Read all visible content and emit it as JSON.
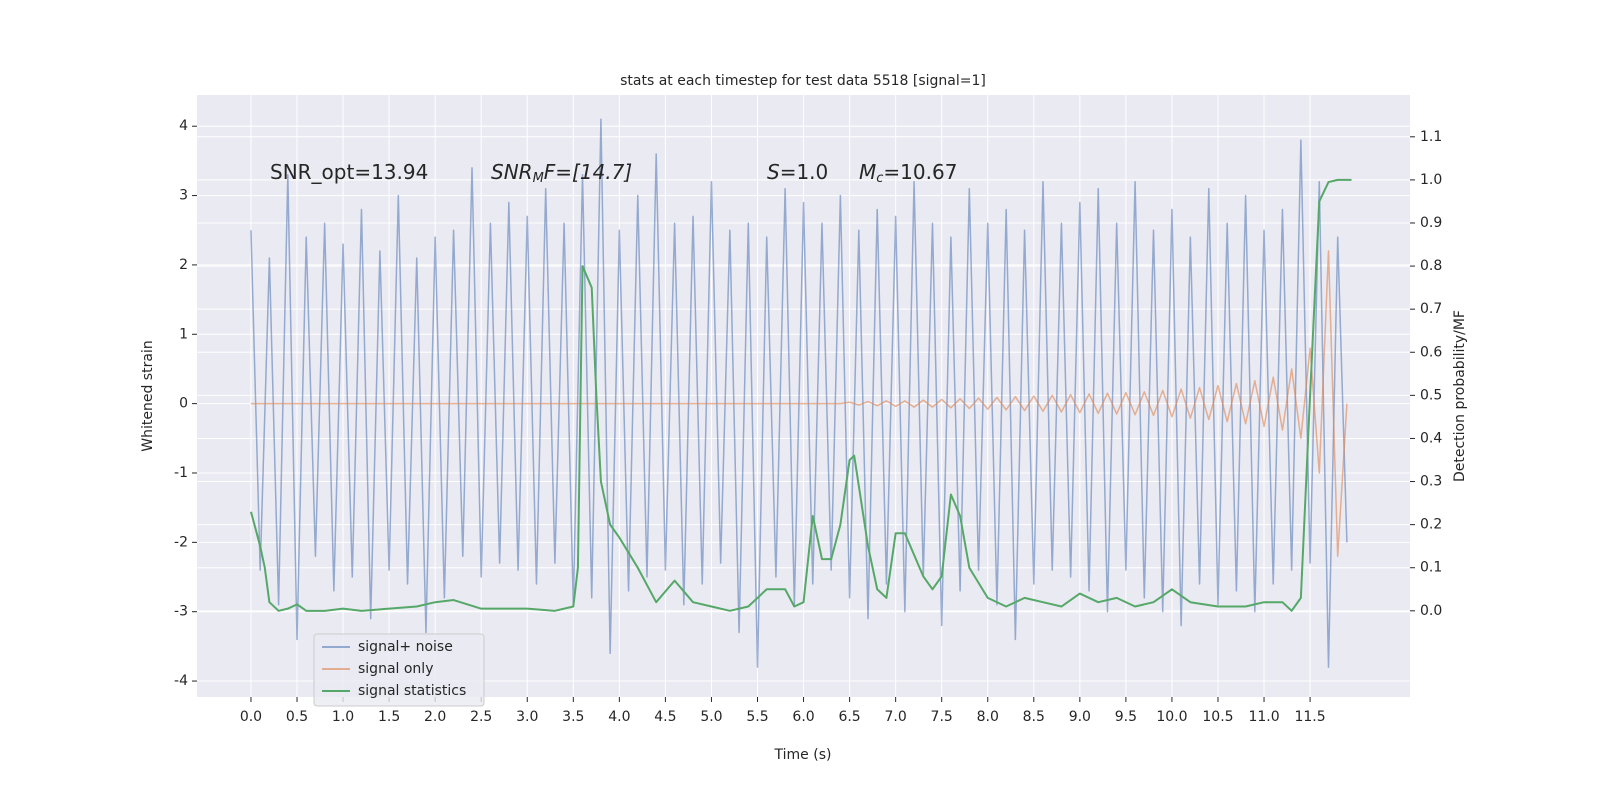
{
  "chart_data": {
    "type": "line",
    "title": "stats at each timestep for test data 5518 [signal=1]",
    "xlabel": "Time (s)",
    "ylabel": "Whitened strain",
    "y2label": "Detection probability/MF",
    "annotations": [
      [
        "SNR_opt=13.94"
      ],
      [
        "SNR",
        "M",
        "F=[14.7]"
      ],
      [
        "S",
        "=1.0"
      ],
      [
        "M",
        "c",
        "=10.67"
      ]
    ],
    "xlim": [
      -0.586,
      12.585
    ],
    "ylim": [
      -4.23,
      4.45
    ],
    "y2lim": [
      -0.2,
      1.197
    ],
    "xticks": [
      {
        "value": 0,
        "label": "0.0"
      },
      0.5,
      {
        "value": 1,
        "label": "1.0"
      },
      1.5,
      {
        "value": 2,
        "label": "2.0"
      },
      2.5,
      {
        "value": 3,
        "label": "3.0"
      },
      3.5,
      {
        "value": 4,
        "label": "4.0"
      },
      4.5,
      {
        "value": 5,
        "label": "5.0"
      },
      5.5,
      {
        "value": 6,
        "label": "6.0"
      },
      6.5,
      {
        "value": 7,
        "label": "7.0"
      },
      7.5,
      {
        "value": 8,
        "label": "8.0"
      },
      8.5,
      {
        "value": 9,
        "label": "9.0"
      },
      9.5,
      {
        "value": 10,
        "label": "10.0"
      },
      10.5,
      {
        "value": 11,
        "label": "11.0"
      },
      11.5
    ],
    "yticks": [
      -4,
      -3,
      -2,
      -1,
      0,
      1,
      2,
      3,
      4
    ],
    "y2ticks": [
      {
        "value": 0,
        "label": "0.0"
      },
      0.1,
      0.2,
      0.3,
      0.4,
      0.5,
      0.6,
      0.7,
      0.8,
      0.9,
      {
        "value": 1,
        "label": "1.0"
      },
      1.1
    ],
    "grid": true,
    "legend": "lower left",
    "x": [
      0,
      0.1,
      0.2,
      0.3,
      0.4,
      0.5,
      0.6,
      0.7,
      0.8,
      0.9,
      1,
      1.1,
      1.2,
      1.3,
      1.4,
      1.5,
      1.6,
      1.7,
      1.8,
      1.9,
      2,
      2.1,
      2.2,
      2.3,
      2.4,
      2.5,
      2.6,
      2.7,
      2.8,
      2.9,
      3,
      3.1,
      3.2,
      3.3,
      3.4,
      3.5,
      3.6,
      3.7,
      3.8,
      3.9,
      4,
      4.1,
      4.2,
      4.3,
      4.4,
      4.5,
      4.6,
      4.7,
      4.8,
      4.9,
      5,
      5.1,
      5.2,
      5.3,
      5.4,
      5.5,
      5.6,
      5.7,
      5.8,
      5.9,
      6,
      6.1,
      6.2,
      6.3,
      6.4,
      6.5,
      6.6,
      6.7,
      6.8,
      6.9,
      7,
      7.1,
      7.2,
      7.3,
      7.4,
      7.5,
      7.6,
      7.7,
      7.8,
      7.9,
      8,
      8.1,
      8.2,
      8.3,
      8.4,
      8.5,
      8.6,
      8.7,
      8.8,
      8.9,
      9,
      9.1,
      9.2,
      9.3,
      9.4,
      9.5,
      9.6,
      9.7,
      9.8,
      9.9,
      10,
      10.1,
      10.2,
      10.3,
      10.4,
      10.5,
      10.6,
      10.7,
      10.8,
      10.9,
      11,
      11.1,
      11.2,
      11.3,
      11.4,
      11.5,
      11.6,
      11.7,
      11.8,
      11.9
    ],
    "series": [
      {
        "name": "signal+ noise",
        "color": "#4c72b0",
        "opacity": 0.55,
        "axis": "y",
        "values": [
          2.5,
          -2.4,
          2.1,
          -2.9,
          3.3,
          -3.4,
          2.4,
          -2.2,
          2.6,
          -2.7,
          2.3,
          -2.5,
          2.8,
          -3.1,
          2.2,
          -2.4,
          3.0,
          -2.6,
          2.1,
          -3.3,
          2.4,
          -2.8,
          2.5,
          -2.2,
          3.4,
          -2.5,
          2.6,
          -2.3,
          2.9,
          -2.4,
          2.7,
          -2.6,
          3.1,
          -2.3,
          2.6,
          -2.9,
          3.3,
          -2.8,
          4.1,
          -3.6,
          2.5,
          -2.7,
          3.0,
          -2.5,
          3.6,
          -2.4,
          2.6,
          -2.9,
          2.7,
          -2.6,
          3.2,
          -2.3,
          2.5,
          -3.3,
          2.6,
          -3.8,
          2.4,
          -2.5,
          3.1,
          -2.9,
          2.9,
          -2.6,
          2.6,
          -2.4,
          3.0,
          -2.8,
          2.5,
          -3.1,
          2.8,
          -2.6,
          2.7,
          -3.0,
          3.2,
          -2.5,
          2.6,
          -3.2,
          2.4,
          -2.7,
          3.1,
          -2.4,
          2.6,
          -2.9,
          2.8,
          -3.4,
          2.5,
          -2.6,
          3.2,
          -2.4,
          2.6,
          -2.5,
          2.9,
          -2.7,
          3.1,
          -3.0,
          2.6,
          -2.4,
          3.2,
          -2.8,
          2.5,
          -3.0,
          2.8,
          -3.2,
          2.4,
          -2.6,
          3.1,
          -2.9,
          2.6,
          -2.7,
          3.0,
          -3.0,
          2.5,
          -2.6,
          2.8,
          -2.4,
          3.8,
          -2.3,
          3.2,
          -3.8,
          2.4,
          -2.0
        ]
      },
      {
        "name": "signal only",
        "color": "#dd8452",
        "opacity": 0.6,
        "axis": "y",
        "values": [
          0,
          0,
          0,
          0,
          0,
          0,
          0,
          0,
          0,
          0,
          0,
          0,
          0,
          0,
          0,
          0,
          0,
          0,
          0,
          0,
          0,
          0,
          0,
          0,
          0,
          0,
          0,
          0,
          0,
          0,
          0,
          0,
          0,
          0,
          0,
          0,
          0,
          0,
          0,
          0,
          0,
          0,
          0,
          0,
          0,
          0,
          0,
          0,
          0,
          0,
          0,
          0,
          0,
          0,
          0,
          0,
          0,
          0,
          0,
          0,
          0,
          0,
          0,
          0,
          0,
          0.02,
          -0.02,
          0.03,
          -0.03,
          0.04,
          -0.04,
          0.04,
          -0.05,
          0.05,
          -0.05,
          0.06,
          -0.06,
          0.07,
          -0.07,
          0.08,
          -0.08,
          0.09,
          -0.09,
          0.1,
          -0.1,
          0.11,
          -0.11,
          0.12,
          -0.12,
          0.13,
          -0.13,
          0.14,
          -0.14,
          0.15,
          -0.15,
          0.16,
          -0.16,
          0.17,
          -0.17,
          0.19,
          -0.19,
          0.21,
          -0.21,
          0.23,
          -0.23,
          0.26,
          -0.26,
          0.29,
          -0.29,
          0.33,
          -0.33,
          0.38,
          -0.38,
          0.5,
          -0.5,
          0.8,
          -1.0,
          2.2,
          -2.2,
          0
        ]
      },
      {
        "name": "signal statistics",
        "color": "#55a868",
        "opacity": 1,
        "axis": "y2",
        "x": [
          0,
          0.1,
          0.15,
          0.2,
          0.3,
          0.4,
          0.5,
          0.6,
          0.8,
          1,
          1.2,
          1.5,
          1.8,
          2,
          2.2,
          2.5,
          3,
          3.3,
          3.5,
          3.55,
          3.6,
          3.7,
          3.75,
          3.8,
          3.9,
          4,
          4.2,
          4.4,
          4.6,
          4.8,
          5,
          5.2,
          5.4,
          5.6,
          5.8,
          5.9,
          6,
          6.1,
          6.2,
          6.3,
          6.4,
          6.5,
          6.55,
          6.7,
          6.8,
          6.9,
          7,
          7.1,
          7.3,
          7.4,
          7.5,
          7.6,
          7.7,
          7.8,
          8,
          8.2,
          8.4,
          8.6,
          8.8,
          9,
          9.2,
          9.4,
          9.6,
          9.8,
          10,
          10.2,
          10.5,
          10.8,
          11,
          11.2,
          11.3,
          11.4,
          11.5,
          11.6,
          11.7,
          11.8,
          11.95
        ],
        "values": [
          0.23,
          0.15,
          0.1,
          0.02,
          0.0,
          0.005,
          0.015,
          0.0,
          0.0,
          0.005,
          0.0,
          0.005,
          0.01,
          0.02,
          0.025,
          0.005,
          0.005,
          0.0,
          0.01,
          0.1,
          0.8,
          0.75,
          0.5,
          0.3,
          0.2,
          0.17,
          0.1,
          0.02,
          0.07,
          0.02,
          0.01,
          0.0,
          0.01,
          0.05,
          0.05,
          0.01,
          0.02,
          0.22,
          0.12,
          0.12,
          0.2,
          0.35,
          0.36,
          0.15,
          0.05,
          0.03,
          0.18,
          0.18,
          0.08,
          0.05,
          0.08,
          0.27,
          0.22,
          0.1,
          0.03,
          0.01,
          0.03,
          0.02,
          0.01,
          0.04,
          0.02,
          0.03,
          0.01,
          0.02,
          0.05,
          0.02,
          0.01,
          0.01,
          0.02,
          0.02,
          0.0,
          0.03,
          0.5,
          0.95,
          0.995,
          1.0,
          1.0
        ]
      }
    ]
  }
}
